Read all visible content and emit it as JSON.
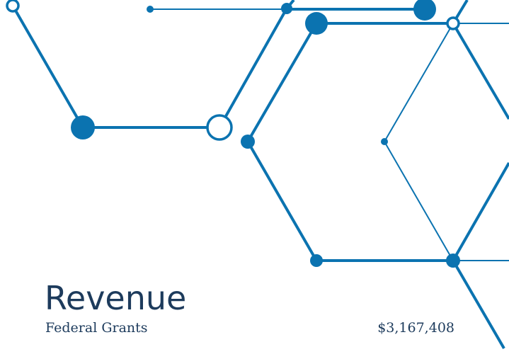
{
  "title": "Revenue",
  "rows": [
    {
      "label": "Federal Grants",
      "value": "$3,167,408"
    }
  ]
}
